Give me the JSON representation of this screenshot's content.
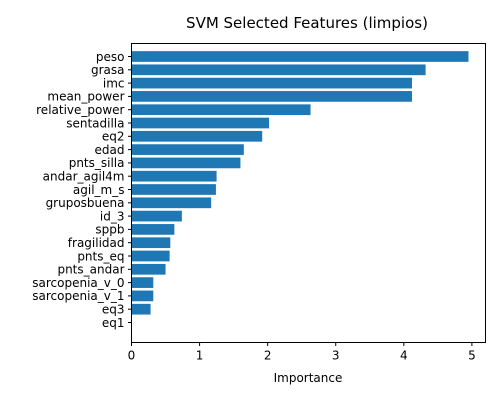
{
  "chart_data": {
    "type": "bar",
    "orientation": "horizontal",
    "title": "SVM Selected Features (limpios)",
    "xlabel": "Importance",
    "ylabel": "",
    "xlim": [
      0,
      5.2
    ],
    "xticks": [
      0,
      1,
      2,
      3,
      4,
      5
    ],
    "grid": false,
    "bar_color": "#1f77b4",
    "categories": [
      "peso",
      "grasa",
      "imc",
      "mean_power",
      "relative_power",
      "sentadilla",
      "eq2",
      "edad",
      "pnts_silla",
      "andar_agil4m",
      "agil_m_s",
      "gruposbuena",
      "id_3",
      "sppb",
      "fragilidad",
      "pnts_eq",
      "pnts_andar",
      "sarcopenia_v_0",
      "sarcopenia_v_1",
      "eq3",
      "eq1"
    ],
    "values": [
      4.95,
      4.32,
      4.12,
      4.12,
      2.63,
      2.02,
      1.92,
      1.65,
      1.6,
      1.25,
      1.24,
      1.17,
      0.74,
      0.63,
      0.57,
      0.56,
      0.5,
      0.32,
      0.32,
      0.28,
      0.0
    ]
  }
}
